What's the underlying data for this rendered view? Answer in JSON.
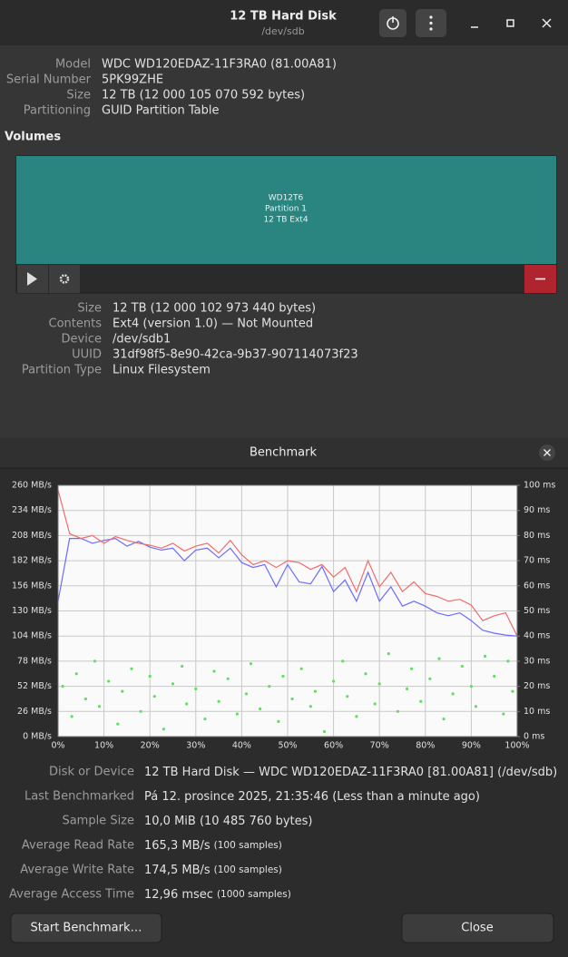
{
  "header": {
    "title": "12 TB Hard Disk",
    "subtitle": "/dev/sdb"
  },
  "disk": {
    "rows": [
      [
        "Model",
        "WDC WD120EDAZ-11F3RA0 (81.00A81)"
      ],
      [
        "Serial Number",
        "5PK99ZHE"
      ],
      [
        "Size",
        "12 TB (12 000 105 070 592 bytes)"
      ],
      [
        "Partitioning",
        "GUID Partition Table"
      ]
    ]
  },
  "volumes": {
    "title": "Volumes",
    "partition": {
      "name": "WD12T6",
      "label": "Partition 1",
      "desc": "12 TB Ext4"
    },
    "rows": [
      [
        "Size",
        "12 TB (12 000 102 973 440 bytes)"
      ],
      [
        "Contents",
        "Ext4 (version 1.0) — Not Mounted"
      ],
      [
        "Device",
        "/dev/sdb1"
      ],
      [
        "UUID",
        "31df98f5-8e90-42ca-9b37-907114073f23"
      ],
      [
        "Partition Type",
        "Linux Filesystem"
      ]
    ]
  },
  "benchmark": {
    "title": "Benchmark",
    "rows": [
      {
        "label": "Disk or Device",
        "value": "12 TB Hard Disk — WDC WD120EDAZ-11F3RA0 [81.00A81] (/dev/sdb)"
      },
      {
        "label": "Last Benchmarked",
        "value": "Pá 12. prosince 2025, 21:35:46 (Less than a minute ago)"
      },
      {
        "label": "Sample Size",
        "value": "10,0 MiB (10 485 760 bytes)"
      },
      {
        "label": "Average Read Rate",
        "value": "165,3 MB/s",
        "note": "(100 samples)"
      },
      {
        "label": "Average Write Rate",
        "value": "174,5 MB/s",
        "note": "(100 samples)"
      },
      {
        "label": "Average Access Time",
        "value": "12,96 msec",
        "note": "(1000 samples)"
      }
    ],
    "buttons": [
      "Start Benchmark…",
      "Close"
    ]
  },
  "chart_data": {
    "type": "line",
    "x": [
      0,
      2.5,
      5,
      7.5,
      10,
      12.5,
      15,
      17.5,
      20,
      22.5,
      25,
      27.5,
      30,
      32.5,
      35,
      37.5,
      40,
      42.5,
      45,
      47.5,
      50,
      52.5,
      55,
      57.5,
      60,
      62.5,
      65,
      67.5,
      70,
      72.5,
      75,
      77.5,
      80,
      82.5,
      85,
      87.5,
      90,
      92.5,
      95,
      97.5,
      100
    ],
    "series": [
      {
        "color": "#6b6bff",
        "values": [
          140,
          205,
          205,
          200,
          203,
          205,
          197,
          202,
          196,
          193,
          195,
          182,
          193,
          195,
          185,
          195,
          180,
          175,
          178,
          155,
          178,
          160,
          158,
          176,
          150,
          162,
          140,
          170,
          140,
          155,
          135,
          140,
          135,
          128,
          125,
          128,
          120,
          110,
          107,
          105,
          104
        ]
      },
      {
        "color": "#f26b6b",
        "values": [
          255,
          210,
          205,
          208,
          200,
          207,
          203,
          200,
          198,
          195,
          200,
          192,
          197,
          200,
          190,
          203,
          188,
          178,
          182,
          175,
          182,
          180,
          173,
          178,
          165,
          175,
          150,
          182,
          155,
          170,
          150,
          160,
          148,
          145,
          140,
          142,
          136,
          120,
          125,
          128,
          104
        ]
      },
      {
        "color": "#5fe05f",
        "axis": "y2",
        "x": [
          1,
          3,
          4,
          6,
          8,
          9,
          11,
          13,
          14,
          16,
          18,
          20,
          21,
          23,
          25,
          27,
          28,
          30,
          32,
          34,
          35,
          37,
          39,
          41,
          42,
          44,
          46,
          48,
          49,
          51,
          53,
          55,
          56,
          58,
          60,
          62,
          63,
          65,
          67,
          69,
          70,
          72,
          74,
          76,
          77,
          79,
          81,
          83,
          84,
          86,
          88,
          90,
          91,
          93,
          95,
          97,
          98,
          99
        ],
        "values": [
          20,
          8,
          25,
          15,
          30,
          12,
          22,
          5,
          18,
          27,
          10,
          24,
          16,
          3,
          21,
          28,
          13,
          19,
          7,
          26,
          14,
          23,
          9,
          17,
          29,
          11,
          20,
          6,
          24,
          15,
          27,
          12,
          18,
          2,
          22,
          30,
          16,
          8,
          25,
          13,
          21,
          33,
          10,
          19,
          27,
          14,
          23,
          31,
          7,
          17,
          28,
          20,
          12,
          32,
          24,
          9,
          30,
          18
        ]
      }
    ],
    "xlim": [
      0,
      100
    ],
    "xticks": [
      {
        "value": 0,
        "label": "0%"
      },
      {
        "value": 10,
        "label": "10%"
      },
      {
        "value": 20,
        "label": "20%"
      },
      {
        "value": 30,
        "label": "30%"
      },
      {
        "value": 40,
        "label": "40%"
      },
      {
        "value": 50,
        "label": "50%"
      },
      {
        "value": 60,
        "label": "60%"
      },
      {
        "value": 70,
        "label": "70%"
      },
      {
        "value": 80,
        "label": "80%"
      },
      {
        "value": 90,
        "label": "90%"
      },
      {
        "value": 100,
        "label": "100%"
      }
    ],
    "ylim": [
      0,
      260
    ],
    "yticks": [
      {
        "value": 0,
        "label": "0 MB/s"
      },
      {
        "value": 26,
        "label": "26 MB/s"
      },
      {
        "value": 52,
        "label": "52 MB/s"
      },
      {
        "value": 78,
        "label": "78 MB/s"
      },
      {
        "value": 104,
        "label": "104 MB/s"
      },
      {
        "value": 130,
        "label": "130 MB/s"
      },
      {
        "value": 156,
        "label": "156 MB/s"
      },
      {
        "value": 182,
        "label": "182 MB/s"
      },
      {
        "value": 208,
        "label": "208 MB/s"
      },
      {
        "value": 234,
        "label": "234 MB/s"
      },
      {
        "value": 260,
        "label": "260 MB/s"
      }
    ],
    "y2lim": [
      0,
      100
    ],
    "y2ticks": [
      {
        "value": 0,
        "label": "0 ms"
      },
      {
        "value": 10,
        "label": "10 ms"
      },
      {
        "value": 20,
        "label": "20 ms"
      },
      {
        "value": 30,
        "label": "30 ms"
      },
      {
        "value": 40,
        "label": "40 ms"
      },
      {
        "value": 50,
        "label": "50 ms"
      },
      {
        "value": 60,
        "label": "60 ms"
      },
      {
        "value": 70,
        "label": "70 ms"
      },
      {
        "value": 80,
        "label": "80 ms"
      },
      {
        "value": 90,
        "label": "90 ms"
      },
      {
        "value": 100,
        "label": "100 ms"
      }
    ],
    "grid": true
  }
}
